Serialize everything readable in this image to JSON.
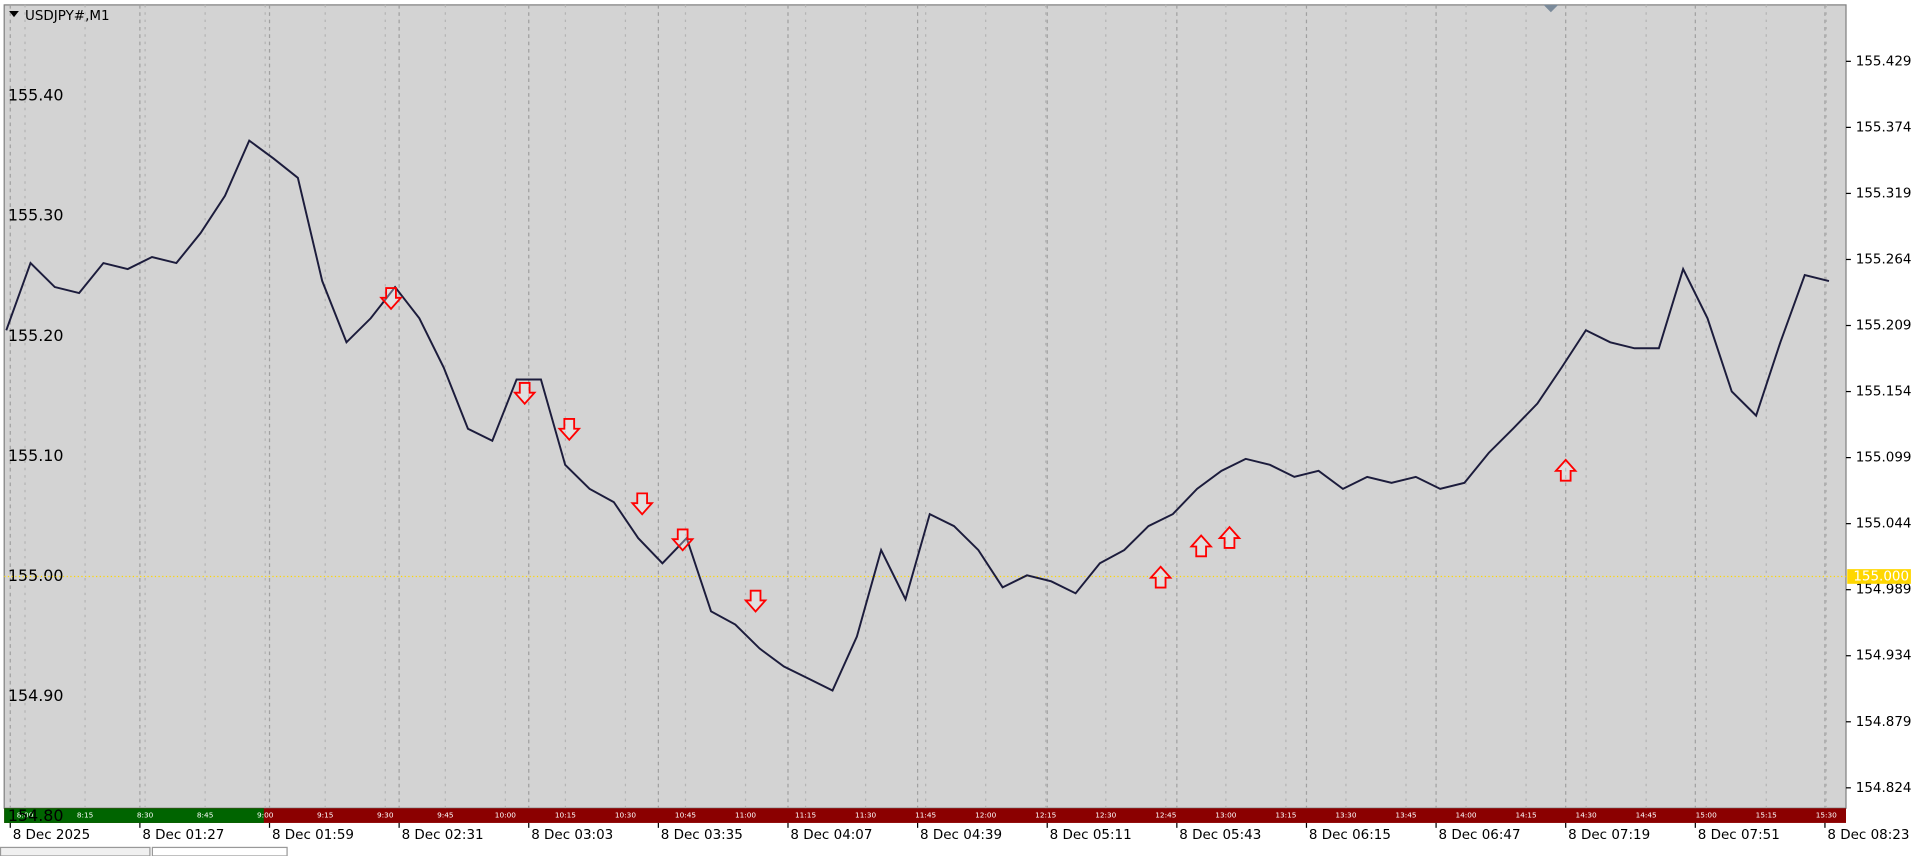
{
  "window_title": "USDJPY#,M1",
  "chart_data": {
    "type": "line",
    "color": "#1c1c3c",
    "x": [
      54,
      60,
      66,
      72,
      78,
      84,
      90,
      96,
      102,
      108,
      114,
      120,
      126,
      132,
      138,
      144,
      150,
      156,
      162,
      168,
      174,
      180,
      186,
      192,
      198,
      204,
      210,
      216,
      222,
      228,
      234,
      240,
      246,
      252,
      258,
      264,
      270,
      276,
      282,
      288,
      294,
      300,
      306,
      312,
      318,
      324,
      330,
      336,
      342,
      348,
      354,
      360,
      366,
      372,
      378,
      384,
      390,
      396,
      402,
      408,
      414,
      420,
      426,
      432,
      438,
      444,
      450,
      456,
      462,
      468,
      474,
      480,
      486,
      492,
      498,
      504
    ],
    "values": [
      155.205,
      155.261,
      155.241,
      155.236,
      155.261,
      155.256,
      155.266,
      155.261,
      155.286,
      155.317,
      155.363,
      155.348,
      155.332,
      155.246,
      155.195,
      155.215,
      155.241,
      155.215,
      155.174,
      155.123,
      155.113,
      155.164,
      155.164,
      155.093,
      155.073,
      155.062,
      155.032,
      155.011,
      155.032,
      154.971,
      154.96,
      154.94,
      154.925,
      154.915,
      154.905,
      154.95,
      155.022,
      154.981,
      155.052,
      155.042,
      155.022,
      154.991,
      155.001,
      154.996,
      154.986,
      155.011,
      155.022,
      155.042,
      155.052,
      155.073,
      155.088,
      155.098,
      155.093,
      155.083,
      155.088,
      155.073,
      155.083,
      155.078,
      155.083,
      155.073,
      155.078,
      155.103,
      155.123,
      155.144,
      155.174,
      155.205,
      155.195,
      155.19,
      155.19,
      155.256,
      155.215,
      155.154,
      155.134,
      155.195,
      155.251,
      155.246
    ],
    "xlim": [
      53.5,
      508.2
    ],
    "ylim": [
      154.807,
      155.476
    ],
    "xticks": [
      {
        "value": 55,
        "label": "8 Dec 2025"
      },
      {
        "value": 87,
        "label": "8 Dec 01:27"
      },
      {
        "value": 119,
        "label": "8 Dec 01:59"
      },
      {
        "value": 151,
        "label": "8 Dec 02:31"
      },
      {
        "value": 183,
        "label": "8 Dec 03:03"
      },
      {
        "value": 215,
        "label": "8 Dec 03:35"
      },
      {
        "value": 247,
        "label": "8 Dec 04:07"
      },
      {
        "value": 279,
        "label": "8 Dec 04:39"
      },
      {
        "value": 311,
        "label": "8 Dec 05:11"
      },
      {
        "value": 343,
        "label": "8 Dec 05:43"
      },
      {
        "value": 375,
        "label": "8 Dec 06:15"
      },
      {
        "value": 407,
        "label": "8 Dec 06:47"
      },
      {
        "value": 439,
        "label": "8 Dec 07:19"
      },
      {
        "value": 471,
        "label": "8 Dec 07:51"
      },
      {
        "value": 503,
        "label": "8 Dec 08:23"
      }
    ],
    "yticks": [
      155.429,
      155.374,
      155.319,
      155.264,
      155.209,
      155.154,
      155.099,
      155.044,
      154.989,
      154.934,
      154.879,
      154.824
    ],
    "level_labels": [
      {
        "value": 155.4,
        "label": "155.40"
      },
      {
        "value": 155.3,
        "label": "155.30"
      },
      {
        "value": 155.2,
        "label": "155.20"
      },
      {
        "value": 155.1,
        "label": "155.10"
      },
      {
        "value": 155.0,
        "label": "155.00"
      },
      {
        "value": 154.9,
        "label": "154.90"
      },
      {
        "value": 154.8,
        "label": "154.80"
      }
    ],
    "price_line": {
      "value": 155.0,
      "label": "155.000",
      "color": "#ffd700"
    },
    "sell_signals": {
      "x": [
        149,
        182,
        193,
        211,
        221,
        239
      ],
      "y": [
        155.23,
        155.151,
        155.121,
        155.059,
        155.029,
        154.978
      ],
      "color": "#ff0000"
    },
    "buy_signals": {
      "x": [
        339,
        349,
        356,
        439
      ],
      "y": [
        155.001,
        155.027,
        155.034,
        155.09
      ],
      "color": "#ff0000"
    },
    "grid": true,
    "session_labels": [
      "8:00",
      "8:15",
      "8:30",
      "8:45",
      "9:00",
      "9:15",
      "9:30",
      "9:45",
      "10:00",
      "10:15",
      "10:30",
      "10:45",
      "11:00",
      "11:15",
      "11:30",
      "11:45",
      "12:00",
      "12:15",
      "12:30",
      "12:45",
      "13:00",
      "13:15",
      "13:30",
      "13:45",
      "14:00",
      "14:15",
      "14:30",
      "14:45",
      "15:00",
      "15:15",
      "15:30"
    ]
  }
}
